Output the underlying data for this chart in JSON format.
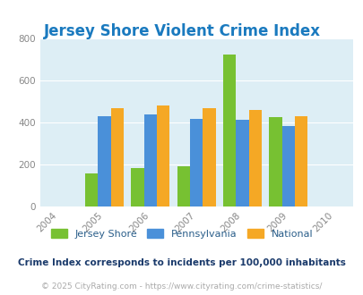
{
  "title": "Jersey Shore Violent Crime Index",
  "years": [
    2005,
    2006,
    2007,
    2008,
    2009
  ],
  "x_ticks": [
    2004,
    2005,
    2006,
    2007,
    2008,
    2009,
    2010
  ],
  "jersey_shore": [
    157,
    182,
    190,
    722,
    425
  ],
  "pennsylvania": [
    430,
    440,
    418,
    412,
    383
  ],
  "national": [
    469,
    479,
    469,
    458,
    429
  ],
  "jersey_shore_color": "#77c132",
  "pennsylvania_color": "#4a90d9",
  "national_color": "#f5a825",
  "background_color": "#ddeef5",
  "figure_bg": "#ffffff",
  "title_color": "#1a7abf",
  "tick_color": "#888888",
  "ylim": [
    0,
    800
  ],
  "yticks": [
    0,
    200,
    400,
    600,
    800
  ],
  "bar_width": 0.28,
  "legend_labels": [
    "Jersey Shore",
    "Pennsylvania",
    "National"
  ],
  "legend_color": "#2a5e8a",
  "footnote1": "Crime Index corresponds to incidents per 100,000 inhabitants",
  "footnote2": "© 2025 CityRating.com - https://www.cityrating.com/crime-statistics/",
  "footnote1_color": "#1a3a6b",
  "footnote2_color": "#aaaaaa",
  "title_fontsize": 12,
  "tick_fontsize": 7.5,
  "legend_fontsize": 8,
  "footnote1_fontsize": 7.5,
  "footnote2_fontsize": 6.5
}
